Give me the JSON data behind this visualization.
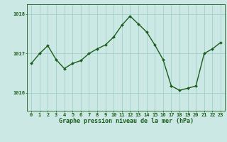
{
  "x": [
    0,
    1,
    2,
    3,
    4,
    5,
    6,
    7,
    8,
    9,
    10,
    11,
    12,
    13,
    14,
    15,
    16,
    17,
    18,
    19,
    20,
    21,
    22,
    23
  ],
  "y": [
    1016.75,
    1017.0,
    1017.2,
    1016.85,
    1016.62,
    1016.75,
    1016.82,
    1017.0,
    1017.12,
    1017.22,
    1017.42,
    1017.72,
    1017.95,
    1017.75,
    1017.55,
    1017.22,
    1016.85,
    1016.18,
    1016.07,
    1016.12,
    1016.18,
    1017.0,
    1017.12,
    1017.28
  ],
  "line_color": "#1a5c1a",
  "marker": "D",
  "markersize": 2.0,
  "background_color": "#cce8e4",
  "grid_color": "#99ccc6",
  "axis_color": "#1a5c1a",
  "tick_color": "#1a5c1a",
  "xlabel": "Graphe pression niveau de la mer (hPa)",
  "yticks": [
    1016,
    1017,
    1018
  ],
  "ylim": [
    1015.55,
    1018.25
  ],
  "xlim": [
    -0.5,
    23.5
  ],
  "xticks": [
    0,
    1,
    2,
    3,
    4,
    5,
    6,
    7,
    8,
    9,
    10,
    11,
    12,
    13,
    14,
    15,
    16,
    17,
    18,
    19,
    20,
    21,
    22,
    23
  ],
  "linewidth": 1.0,
  "tick_fontsize": 5.0,
  "label_fontsize": 6.0
}
